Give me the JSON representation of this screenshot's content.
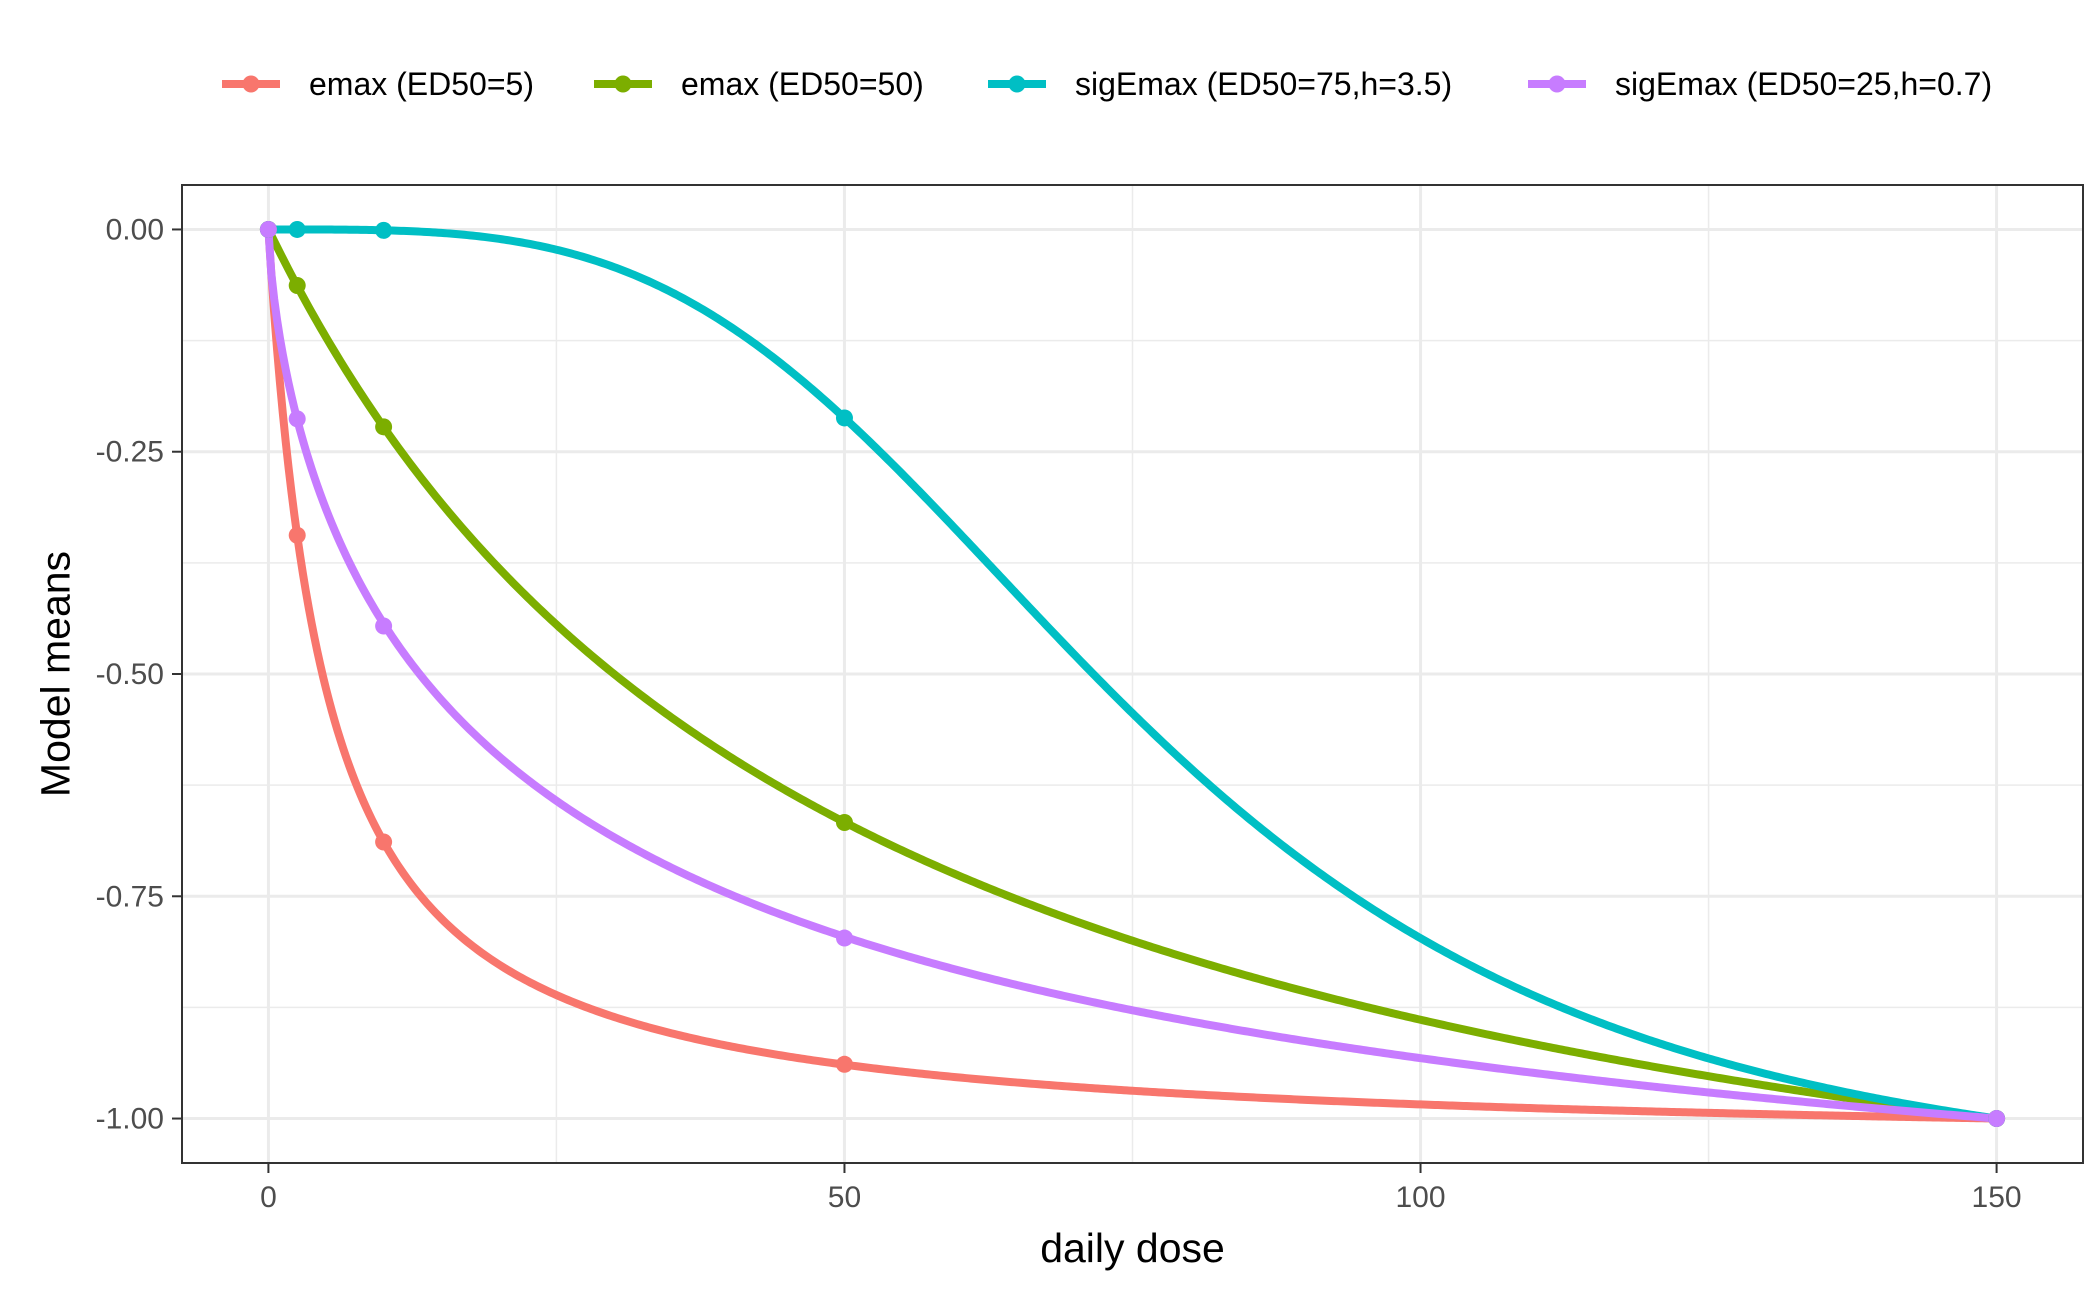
{
  "chart_data": {
    "type": "line",
    "title": "",
    "xlabel": "daily dose",
    "ylabel": "Model means",
    "xlim": [
      -7.5,
      157.5
    ],
    "ylim": [
      -1.05,
      0.05
    ],
    "x_ticks": [
      0,
      50,
      100,
      150
    ],
    "x_tick_labels": [
      "0",
      "50",
      "100",
      "150"
    ],
    "y_ticks": [
      0,
      -0.25,
      -0.5,
      -0.75,
      -1
    ],
    "y_tick_labels": [
      "0.00",
      "-0.25",
      "-0.50",
      "-0.75",
      "-1.00"
    ],
    "grid": true,
    "legend_position": "top",
    "doses": [
      0,
      2.5,
      10,
      50,
      150
    ],
    "series": [
      {
        "name": "emax (ED50=5)",
        "color": "#F8766D",
        "model": "emax",
        "ed50": 5,
        "points": [
          [
            0,
            0
          ],
          [
            2.5,
            -0.344
          ],
          [
            10,
            -0.689
          ],
          [
            50,
            -0.939
          ],
          [
            150,
            -1.0
          ]
        ]
      },
      {
        "name": "emax (ED50=50)",
        "color": "#7CAE00",
        "model": "emax",
        "ed50": 50,
        "points": [
          [
            0,
            0
          ],
          [
            2.5,
            -0.063
          ],
          [
            10,
            -0.222
          ],
          [
            50,
            -0.667
          ],
          [
            150,
            -1.0
          ]
        ]
      },
      {
        "name": "sigEmax (ED50=75,h=3.5)",
        "color": "#00BFC4",
        "model": "sigEmax",
        "ed50": 75,
        "h": 3.5,
        "points": [
          [
            0,
            0
          ],
          [
            2.5,
            0.0
          ],
          [
            10,
            -0.001
          ],
          [
            50,
            -0.212
          ],
          [
            150,
            -1.0
          ]
        ]
      },
      {
        "name": "sigEmax (ED50=25,h=0.7)",
        "color": "#C77CFF",
        "model": "sigEmax",
        "ed50": 25,
        "h": 0.7,
        "points": [
          [
            0,
            0
          ],
          [
            2.5,
            -0.213
          ],
          [
            10,
            -0.446
          ],
          [
            50,
            -0.797
          ],
          [
            150,
            -1.0
          ]
        ]
      }
    ]
  }
}
